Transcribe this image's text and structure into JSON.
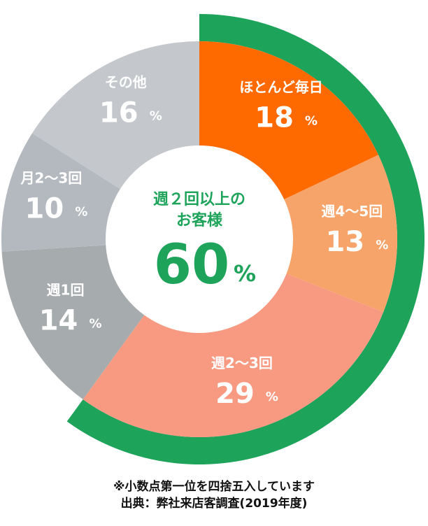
{
  "chart_data": {
    "type": "pie",
    "categories": [
      "ほとんど毎日",
      "週4～5回",
      "週2～3回",
      "週1回",
      "月2～3回",
      "その他"
    ],
    "values": [
      18,
      13,
      29,
      14,
      10,
      16
    ],
    "value_labels": [
      "18",
      "13",
      "29",
      "14",
      "10",
      "16"
    ],
    "unit": "%",
    "colors": [
      "#ff6a00",
      "#f7a46b",
      "#f89a82",
      "#a6abad",
      "#b3b9bf",
      "#c4c8cc"
    ],
    "highlight": {
      "label_line1": "週２回以上の",
      "label_line2": "お客様",
      "value": "60",
      "unit": "%",
      "color": "#1da35a"
    },
    "center_text_color": "#1da35a"
  },
  "notes": {
    "rounding": "※小数点第一位を四捨五入しています",
    "source": "出典：弊社来店客調査(2019年度)"
  }
}
